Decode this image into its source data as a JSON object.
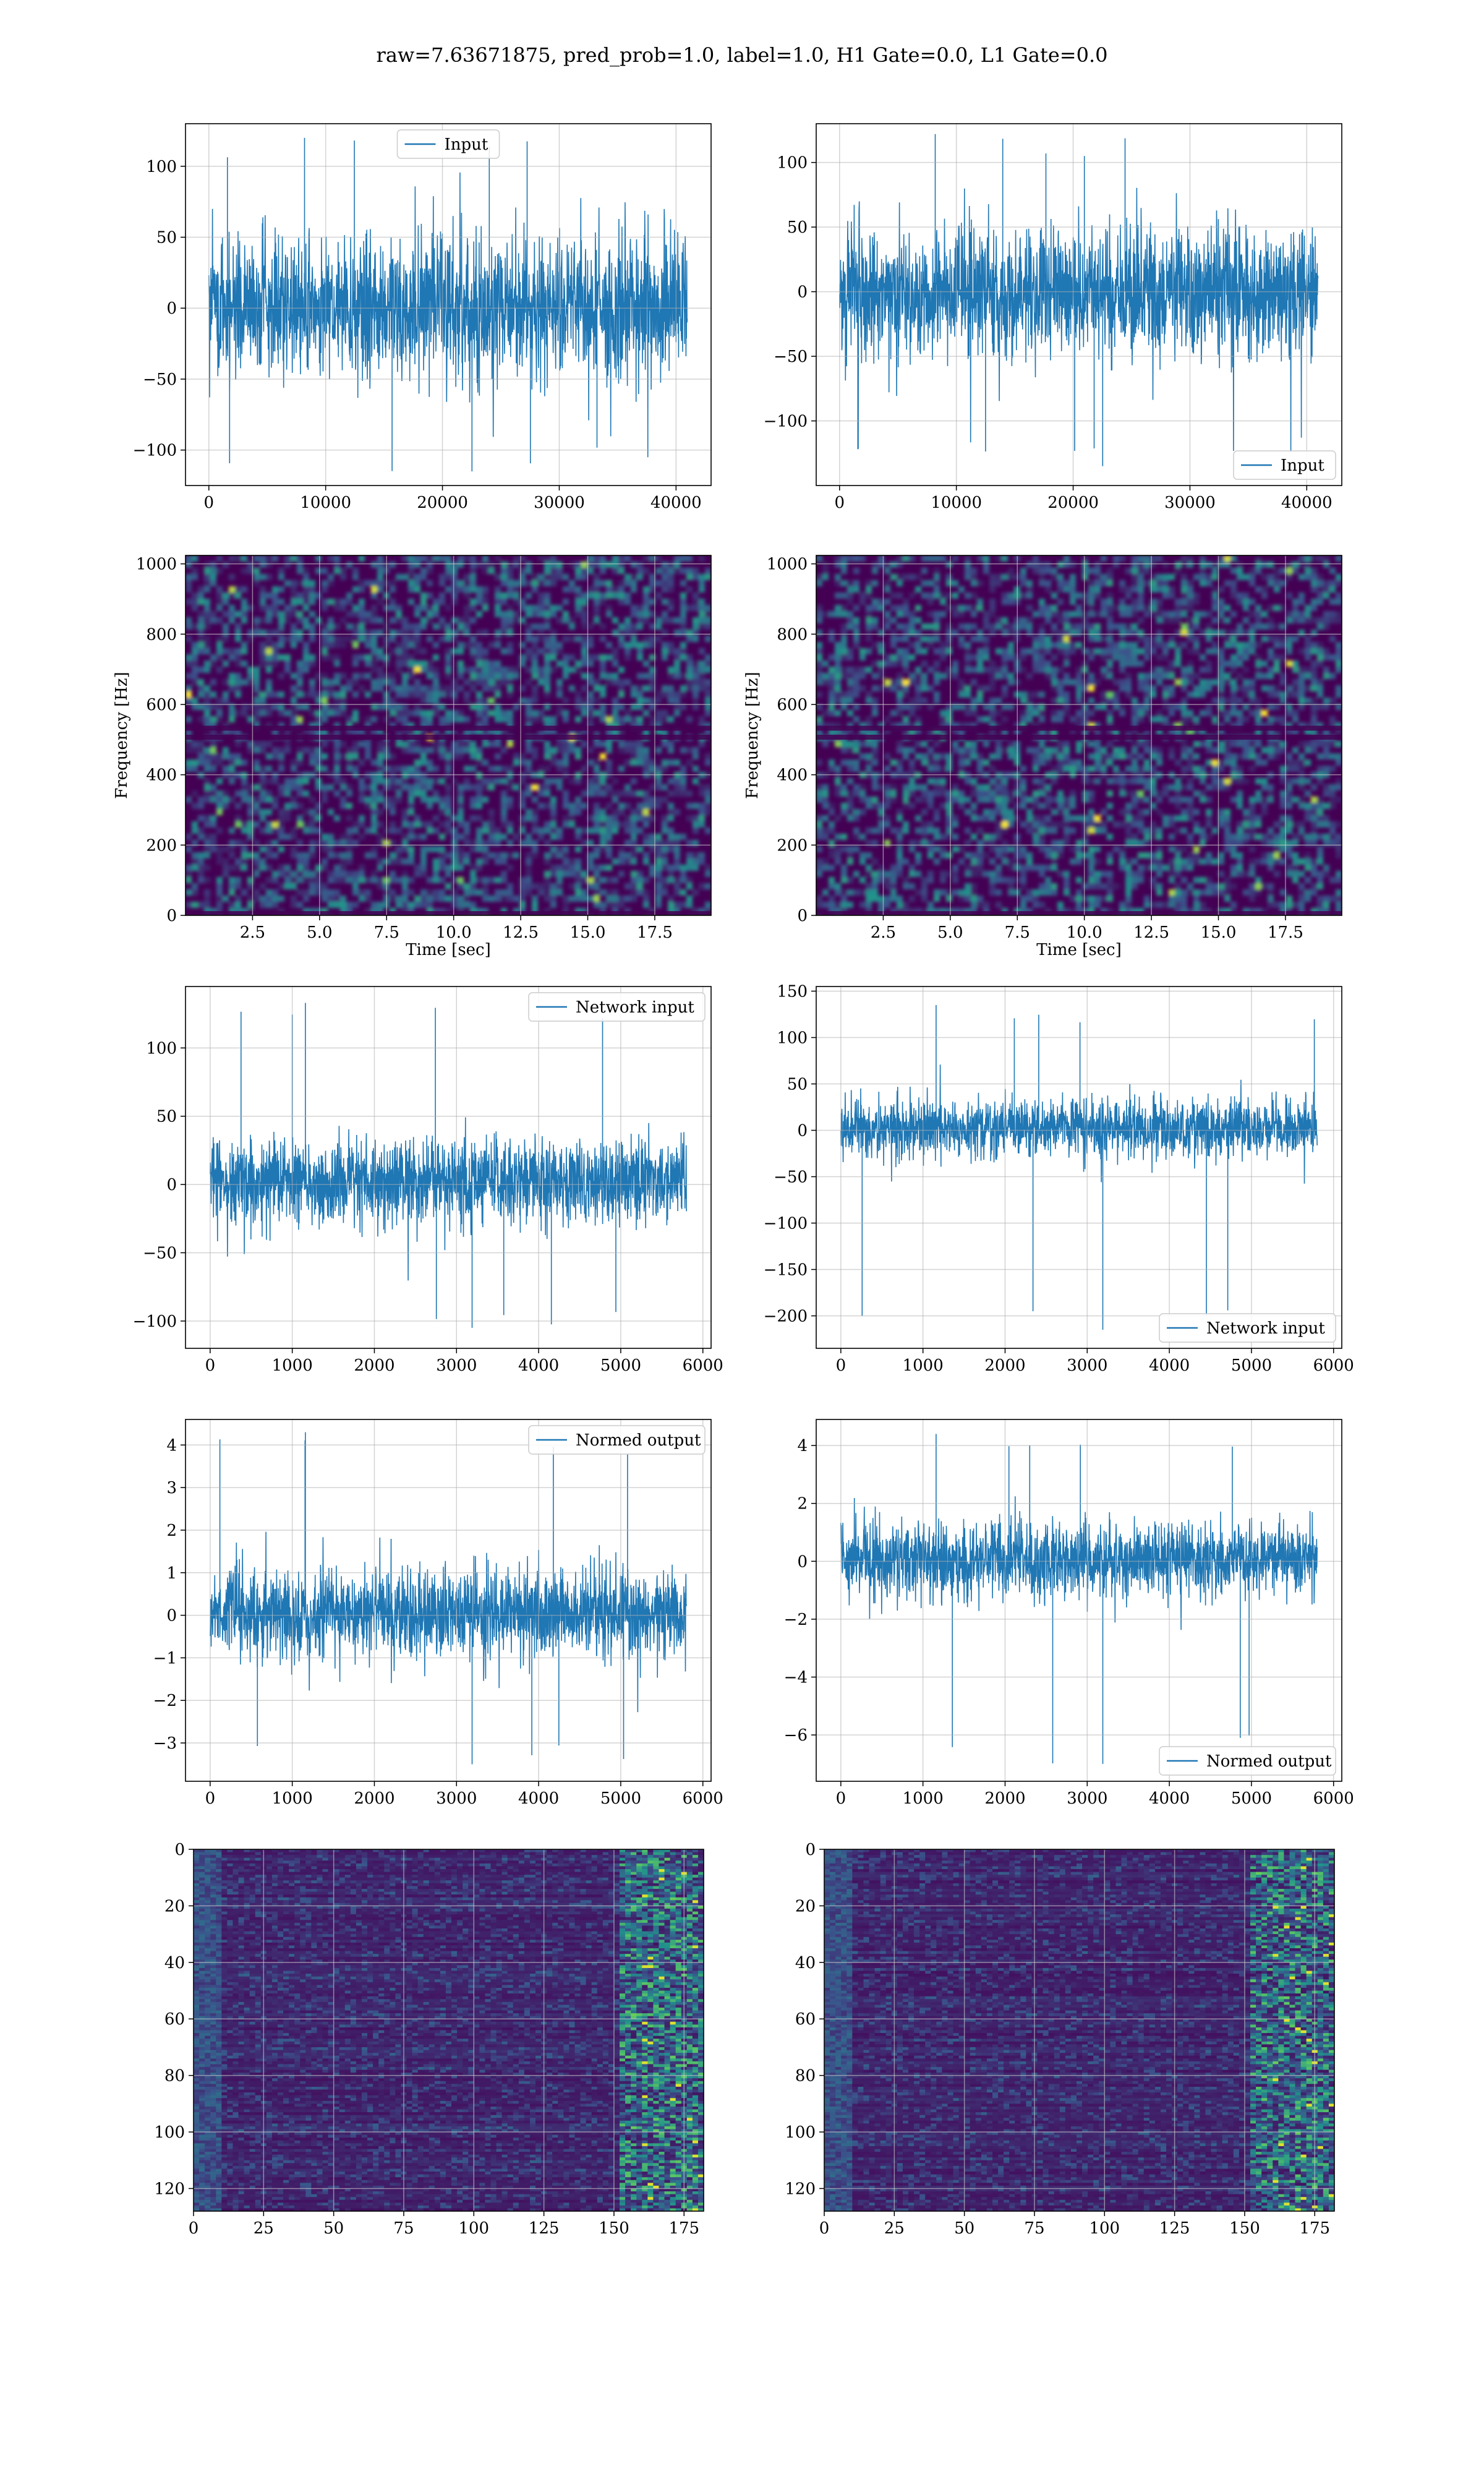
{
  "figure": {
    "title": "raw=7.63671875, pred_prob=1.0, label=1.0, H1 Gate=0.0, L1 Gate=0.0",
    "colors": {
      "line": "#1f77b4",
      "grid": "#b0b0b0",
      "viridis_dark": "#440154",
      "viridis_mid": "#21918c",
      "viridis_bright": "#fde725"
    }
  },
  "chart_data": [
    {
      "id": "r0c0",
      "type": "line",
      "title": "",
      "xlabel": "",
      "ylabel": "",
      "legend": {
        "label": "Input",
        "placement": "upper center"
      },
      "xlim": [
        -2000,
        43000
      ],
      "ylim": [
        -125,
        130
      ],
      "xticks": [
        0,
        10000,
        20000,
        30000,
        40000
      ],
      "yticks": [
        -100,
        -50,
        0,
        50,
        100
      ],
      "series": [
        {
          "name": "Input",
          "n_points": 40960,
          "x_range": [
            0,
            40960
          ],
          "band_lower": -60,
          "band_upper": 60,
          "min": -115,
          "max": 120
        }
      ],
      "grid": true
    },
    {
      "id": "r0c1",
      "type": "line",
      "title": "",
      "xlabel": "",
      "ylabel": "",
      "legend": {
        "label": "Input",
        "placement": "lower right"
      },
      "xlim": [
        -2000,
        43000
      ],
      "ylim": [
        -150,
        130
      ],
      "xticks": [
        0,
        10000,
        20000,
        30000,
        40000
      ],
      "yticks": [
        -100,
        -50,
        0,
        50,
        100
      ],
      "series": [
        {
          "name": "Input",
          "n_points": 40960,
          "x_range": [
            0,
            40960
          ],
          "band_lower": -60,
          "band_upper": 60,
          "min": -135,
          "max": 122
        }
      ],
      "grid": true
    },
    {
      "id": "r1c0",
      "type": "heatmap",
      "title": "",
      "xlabel": "Time [sec]",
      "ylabel": "Frequency [Hz]",
      "xlim": [
        0,
        19.6
      ],
      "ylim": [
        0,
        1024
      ],
      "xticks": [
        2.5,
        5.0,
        7.5,
        10.0,
        12.5,
        15.0,
        17.5
      ],
      "xticklabels": [
        "2.5",
        "5.0",
        "7.5",
        "10.0",
        "12.5",
        "15.0",
        "17.5"
      ],
      "yticks": [
        0,
        200,
        400,
        600,
        800,
        1000
      ],
      "colormap": "viridis",
      "grid": true
    },
    {
      "id": "r1c1",
      "type": "heatmap",
      "title": "",
      "xlabel": "Time [sec]",
      "ylabel": "Frequency [Hz]",
      "xlim": [
        0,
        19.6
      ],
      "ylim": [
        0,
        1024
      ],
      "xticks": [
        2.5,
        5.0,
        7.5,
        10.0,
        12.5,
        15.0,
        17.5
      ],
      "xticklabels": [
        "2.5",
        "5.0",
        "7.5",
        "10.0",
        "12.5",
        "15.0",
        "17.5"
      ],
      "yticks": [
        0,
        200,
        400,
        600,
        800,
        1000
      ],
      "colormap": "viridis",
      "grid": true
    },
    {
      "id": "r2c0",
      "type": "line",
      "title": "",
      "xlabel": "",
      "ylabel": "",
      "legend": {
        "label": "Network input",
        "placement": "upper right"
      },
      "xlim": [
        -300,
        6100
      ],
      "ylim": [
        -120,
        145
      ],
      "xticks": [
        0,
        1000,
        2000,
        3000,
        4000,
        5000,
        6000
      ],
      "yticks": [
        -100,
        -50,
        0,
        50,
        100
      ],
      "series": [
        {
          "name": "Network input",
          "n_points": 5800,
          "x_range": [
            0,
            5800
          ],
          "band_lower": -35,
          "band_upper": 40,
          "min": -105,
          "max": 133
        }
      ],
      "grid": true
    },
    {
      "id": "r2c1",
      "type": "line",
      "title": "",
      "xlabel": "",
      "ylabel": "",
      "legend": {
        "label": "Network input",
        "placement": "lower right"
      },
      "xlim": [
        -300,
        6100
      ],
      "ylim": [
        -235,
        155
      ],
      "xticks": [
        0,
        1000,
        2000,
        3000,
        4000,
        5000,
        6000
      ],
      "yticks": [
        -200,
        -150,
        -100,
        -50,
        0,
        50,
        100,
        150
      ],
      "series": [
        {
          "name": "Network input",
          "n_points": 5800,
          "x_range": [
            0,
            5800
          ],
          "band_lower": -35,
          "band_upper": 40,
          "min": -215,
          "max": 135
        }
      ],
      "grid": true
    },
    {
      "id": "r3c0",
      "type": "line",
      "title": "",
      "xlabel": "",
      "ylabel": "",
      "legend": {
        "label": "Normed output",
        "placement": "upper right"
      },
      "xlim": [
        -300,
        6100
      ],
      "ylim": [
        -3.9,
        4.6
      ],
      "xticks": [
        0,
        1000,
        2000,
        3000,
        4000,
        5000,
        6000
      ],
      "yticks": [
        -3,
        -2,
        -1,
        0,
        1,
        2,
        3,
        4
      ],
      "series": [
        {
          "name": "Normed output",
          "n_points": 5800,
          "x_range": [
            0,
            5800
          ],
          "band_lower": -1.2,
          "band_upper": 1.3,
          "min": -3.5,
          "max": 4.3
        }
      ],
      "grid": true
    },
    {
      "id": "r3c1",
      "type": "line",
      "title": "",
      "xlabel": "",
      "ylabel": "",
      "legend": {
        "label": "Normed output",
        "placement": "lower right"
      },
      "xlim": [
        -300,
        6100
      ],
      "ylim": [
        -7.6,
        4.9
      ],
      "xticks": [
        0,
        1000,
        2000,
        3000,
        4000,
        5000,
        6000
      ],
      "yticks": [
        -6,
        -4,
        -2,
        0,
        2,
        4
      ],
      "series": [
        {
          "name": "Normed output",
          "n_points": 5800,
          "x_range": [
            0,
            5800
          ],
          "band_lower": -1.5,
          "band_upper": 1.6,
          "min": -7.0,
          "max": 4.4
        }
      ],
      "grid": true
    },
    {
      "id": "r4c0",
      "type": "heatmap",
      "title": "",
      "xlabel": "",
      "ylabel": "",
      "xlim": [
        0,
        182
      ],
      "ylim": [
        128,
        0
      ],
      "xticks": [
        0,
        25,
        50,
        75,
        100,
        125,
        150,
        175
      ],
      "yticks": [
        0,
        20,
        40,
        60,
        80,
        100,
        120
      ],
      "colormap": "viridis",
      "grid": true
    },
    {
      "id": "r4c1",
      "type": "heatmap",
      "title": "",
      "xlabel": "",
      "ylabel": "",
      "xlim": [
        0,
        182
      ],
      "ylim": [
        128,
        0
      ],
      "xticks": [
        0,
        25,
        50,
        75,
        100,
        125,
        150,
        175
      ],
      "yticks": [
        0,
        20,
        40,
        60,
        80,
        100,
        120
      ],
      "colormap": "viridis",
      "grid": true
    }
  ]
}
